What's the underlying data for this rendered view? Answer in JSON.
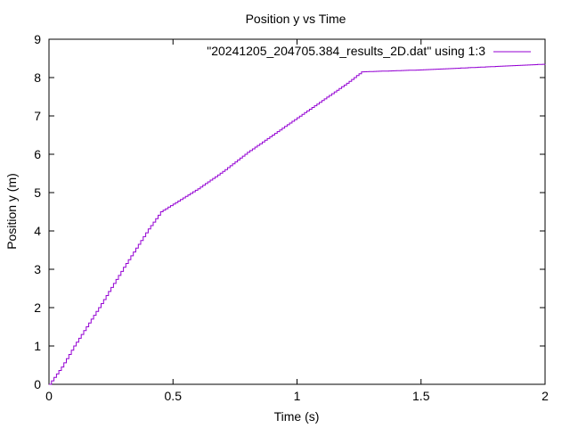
{
  "chart_data": {
    "type": "line",
    "title": "Position y vs Time",
    "xlabel": "Time (s)",
    "ylabel": "Position y (m)",
    "xlim": [
      0,
      2
    ],
    "ylim": [
      0,
      9
    ],
    "xticks": [
      "0",
      "0.5",
      "1",
      "1.5",
      "2"
    ],
    "yticks": [
      "0",
      "1",
      "2",
      "3",
      "4",
      "5",
      "6",
      "7",
      "8",
      "9"
    ],
    "grid": false,
    "legend_position": "top-right",
    "series": [
      {
        "name": "\"20241205_204705.384_results_2D.dat\" using 1:3",
        "color": "#9400d3",
        "x": [
          0,
          0.05,
          0.1,
          0.2,
          0.3,
          0.4,
          0.45,
          0.5,
          0.6,
          0.7,
          0.8,
          0.9,
          1.0,
          1.1,
          1.2,
          1.26,
          1.5,
          2.0
        ],
        "y": [
          0,
          0.45,
          1.0,
          2.0,
          3.05,
          4.05,
          4.5,
          4.7,
          5.1,
          5.55,
          6.05,
          6.5,
          6.95,
          7.4,
          7.85,
          8.15,
          8.2,
          8.35
        ]
      }
    ]
  }
}
